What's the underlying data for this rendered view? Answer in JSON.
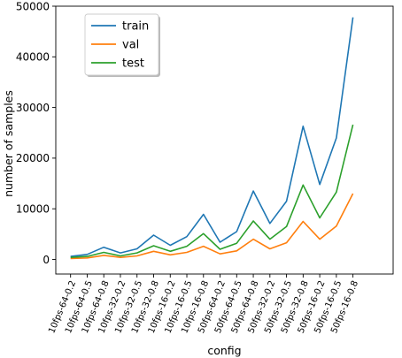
{
  "chart_data": {
    "type": "line",
    "title": "",
    "xlabel": "config",
    "ylabel": "number of samples",
    "ylim": [
      0,
      50000
    ],
    "yticks": [
      0,
      10000,
      20000,
      30000,
      40000,
      50000
    ],
    "legend_position": "top-left",
    "grid": false,
    "categories": [
      "10fps-64-0.2",
      "10fps-64-0.5",
      "10fps-64-0.8",
      "10fps-32-0.2",
      "10fps-32-0.5",
      "10fps-32-0.8",
      "10fps-16-0.2",
      "10fps-16-0.5",
      "10fps-16-0.8",
      "50fps-64-0.2",
      "50fps-64-0.5",
      "50fps-64-0.8",
      "50fps-32-0.2",
      "50fps-32-0.5",
      "50fps-32-0.8",
      "50fps-16-0.2",
      "50fps-16-0.5",
      "50fps-16-0.8"
    ],
    "series": [
      {
        "name": "train",
        "color": "#1f77b4",
        "values": [
          600,
          1000,
          2400,
          1300,
          2100,
          4800,
          2800,
          4500,
          8900,
          3400,
          5500,
          13500,
          7100,
          11500,
          26300,
          14800,
          24000,
          47800
        ]
      },
      {
        "name": "val",
        "color": "#ff7f0e",
        "values": [
          200,
          300,
          800,
          400,
          700,
          1600,
          900,
          1400,
          2600,
          1100,
          1700,
          4000,
          2100,
          3300,
          7500,
          4000,
          6600,
          13000
        ]
      },
      {
        "name": "test",
        "color": "#2ca02c",
        "values": [
          400,
          600,
          1400,
          700,
          1300,
          2700,
          1600,
          2600,
          5100,
          2000,
          3200,
          7600,
          4000,
          6500,
          14700,
          8200,
          13300,
          26600
        ]
      }
    ]
  }
}
